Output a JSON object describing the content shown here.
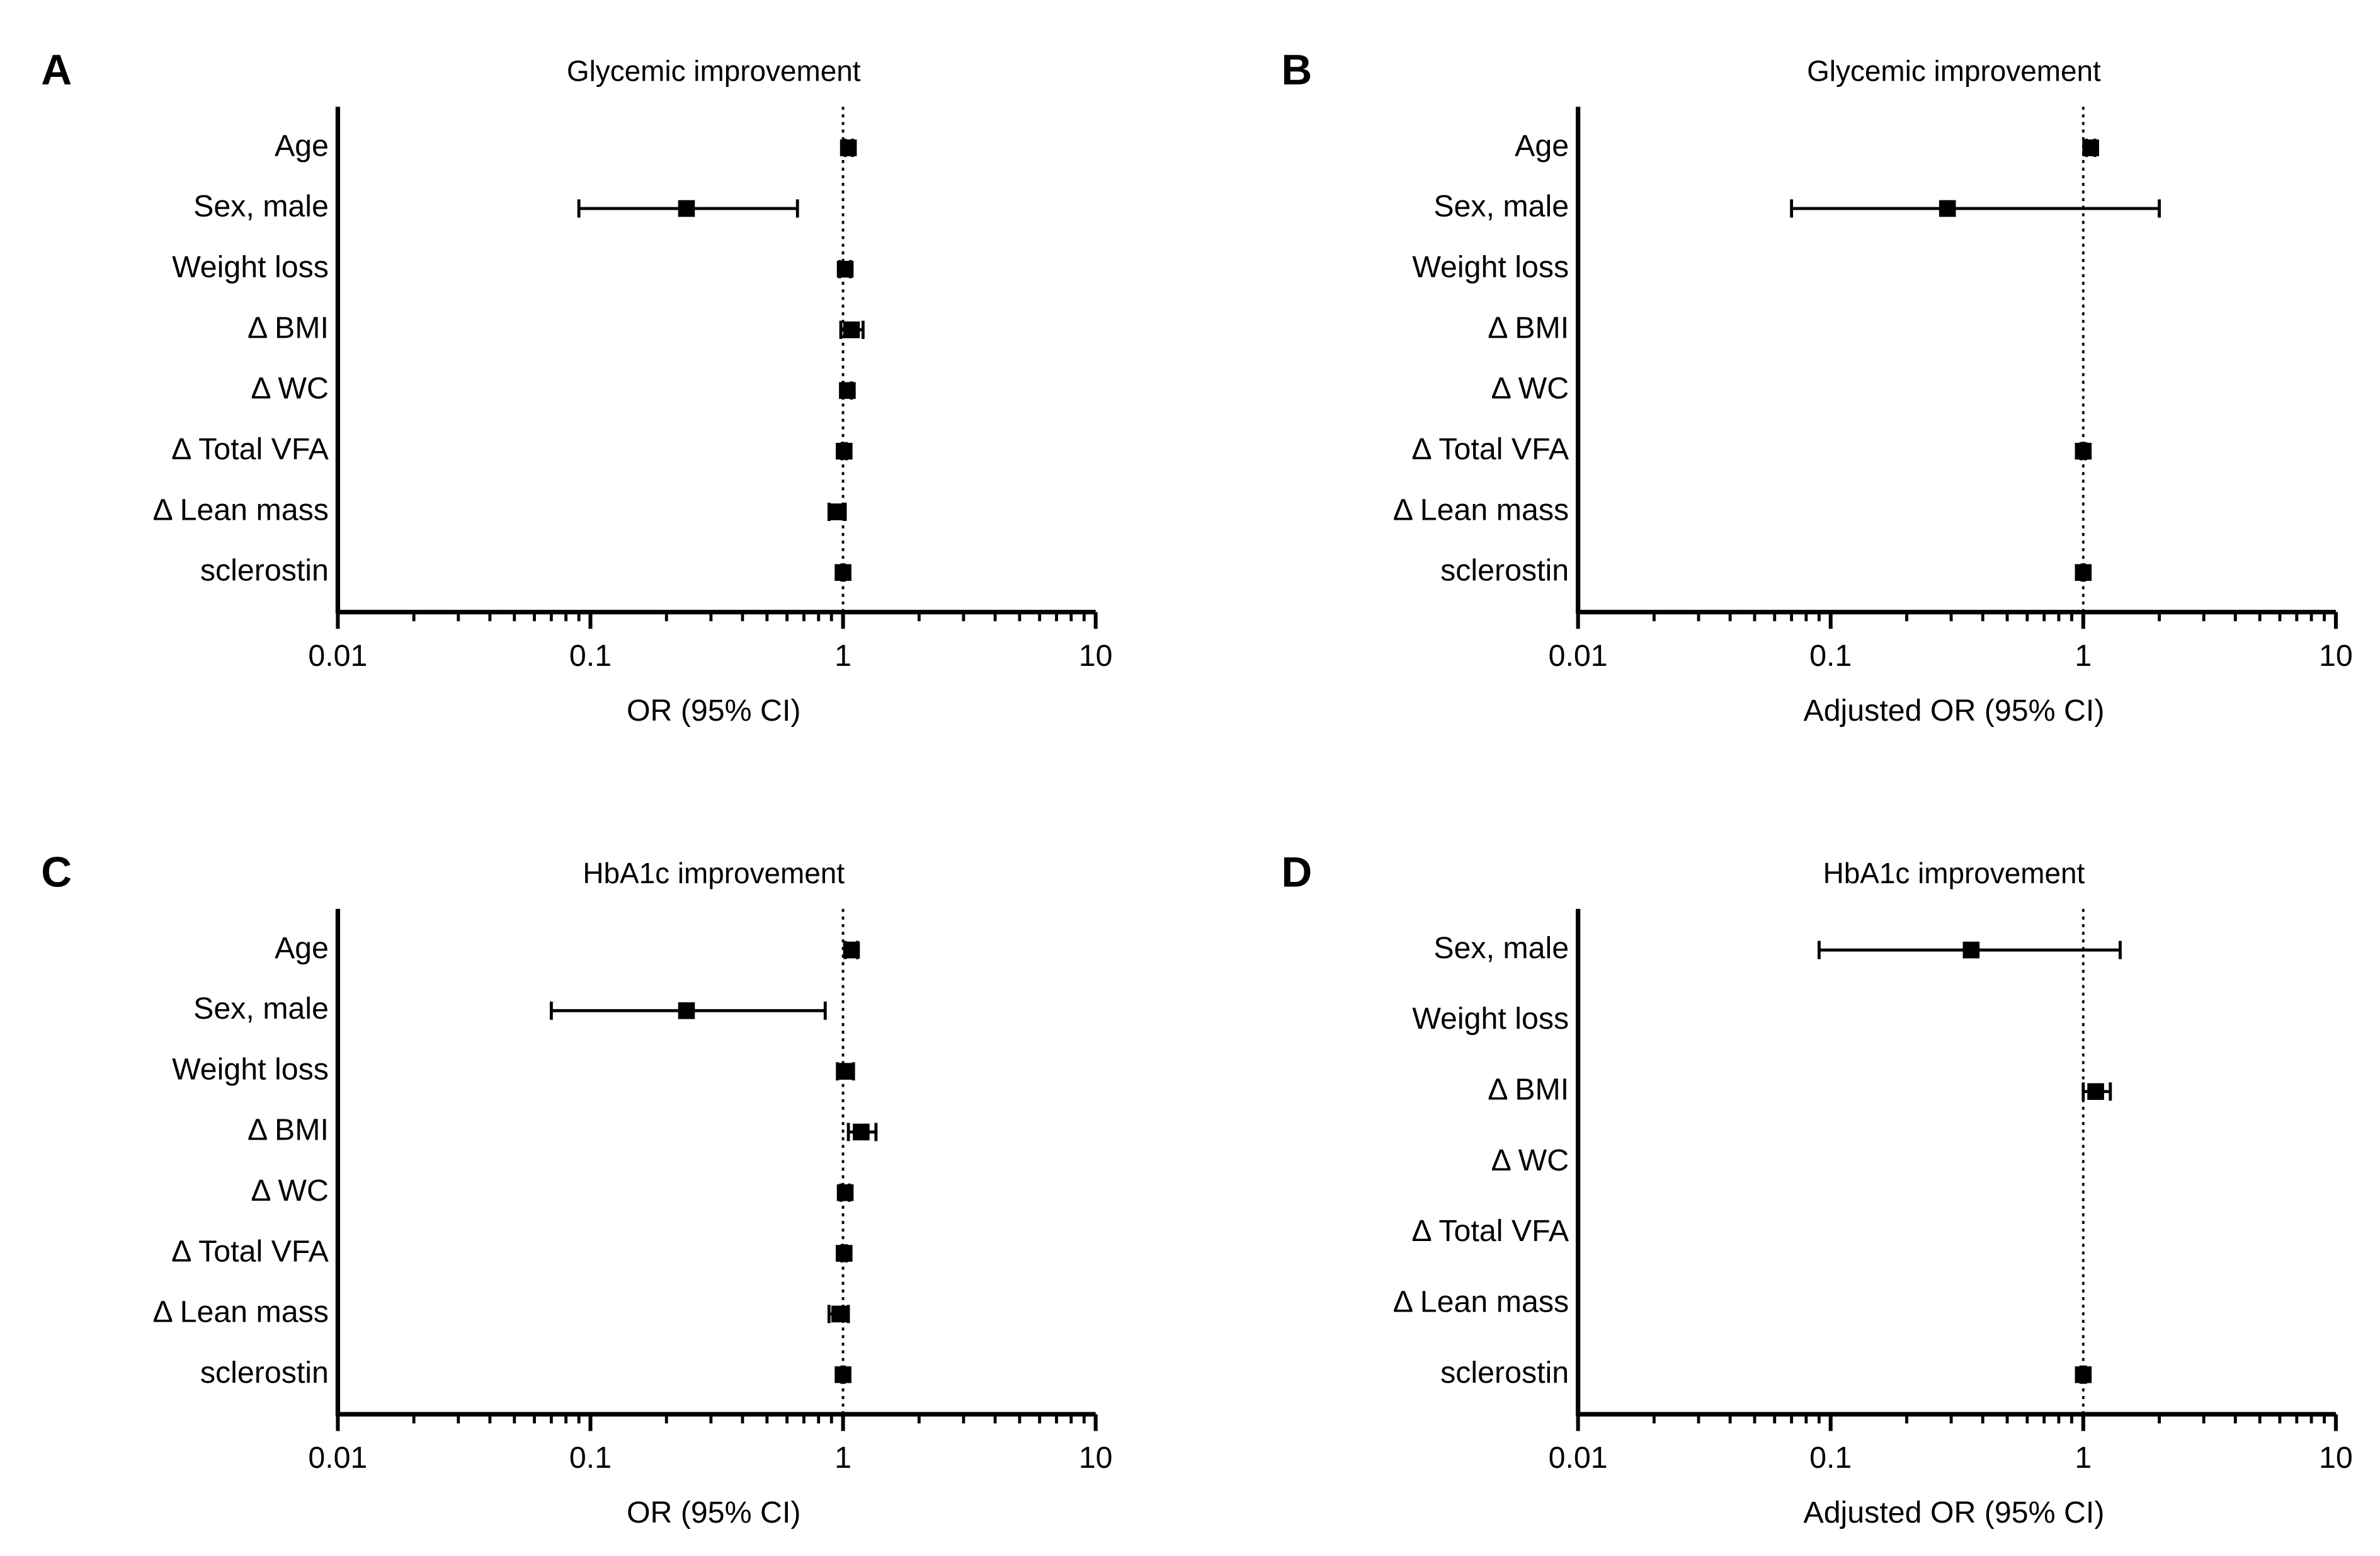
{
  "chart_data": [
    {
      "type": "forest",
      "panel": "A",
      "title": "Glycemic improvement",
      "xlabel": "OR (95% CI)",
      "xscale": "log",
      "xlim": [
        0.01,
        10
      ],
      "xticks": [
        0.01,
        0.1,
        1,
        10
      ],
      "reference_line": 1,
      "color": "#000000",
      "categories": [
        "Age",
        "Sex, male",
        "Weight loss",
        "Δ BMI",
        "Δ WC",
        "Δ Total VFA",
        "Δ Lean mass",
        "sclerostin"
      ],
      "values": [
        1.05,
        0.24,
        1.02,
        1.08,
        1.04,
        1.01,
        0.95,
        1.0
      ],
      "lower": [
        1.02,
        0.09,
        0.97,
        0.98,
        1.0,
        0.99,
        0.88,
        0.99
      ],
      "upper": [
        1.09,
        0.66,
        1.07,
        1.2,
        1.08,
        1.03,
        1.02,
        1.01
      ]
    },
    {
      "type": "forest",
      "panel": "B",
      "title": "Glycemic improvement",
      "xlabel": "Adjusted OR (95% CI)",
      "xscale": "log",
      "xlim": [
        0.01,
        10
      ],
      "xticks": [
        0.01,
        0.1,
        1,
        10
      ],
      "reference_line": 1,
      "color": "#000000",
      "categories": [
        "Age",
        "Sex, male",
        "Weight loss",
        "Δ BMI",
        "Δ WC",
        "Δ Total VFA",
        "Δ Lean mass",
        "sclerostin"
      ],
      "values": [
        1.07,
        0.29,
        null,
        null,
        null,
        1.0,
        null,
        1.0
      ],
      "lower": [
        1.03,
        0.07,
        null,
        null,
        null,
        0.98,
        null,
        0.99
      ],
      "upper": [
        1.11,
        2.0,
        null,
        null,
        null,
        1.02,
        null,
        1.01
      ]
    },
    {
      "type": "forest",
      "panel": "C",
      "title": "HbA1c improvement",
      "xlabel": "OR (95% CI)",
      "xscale": "log",
      "xlim": [
        0.01,
        10
      ],
      "xticks": [
        0.01,
        0.1,
        1,
        10
      ],
      "reference_line": 1,
      "color": "#000000",
      "categories": [
        "Age",
        "Sex, male",
        "Weight loss",
        "Δ BMI",
        "Δ WC",
        "Δ Total VFA",
        "Δ Lean mass",
        "sclerostin"
      ],
      "values": [
        1.08,
        0.24,
        1.03,
        1.18,
        1.02,
        1.01,
        0.97,
        1.0
      ],
      "lower": [
        1.02,
        0.07,
        0.95,
        1.05,
        0.98,
        0.99,
        0.88,
        0.99
      ],
      "upper": [
        1.14,
        0.85,
        1.1,
        1.35,
        1.06,
        1.03,
        1.05,
        1.01
      ]
    },
    {
      "type": "forest",
      "panel": "D",
      "title": "HbA1c improvement",
      "xlabel": "Adjusted OR (95% CI)",
      "xscale": "log",
      "xlim": [
        0.01,
        10
      ],
      "xticks": [
        0.01,
        0.1,
        1,
        10
      ],
      "reference_line": 1,
      "color": "#000000",
      "categories": [
        "Sex, male",
        "Weight loss",
        "Δ BMI",
        "Δ WC",
        "Δ Total VFA",
        "Δ Lean mass",
        "sclerostin"
      ],
      "values": [
        0.36,
        null,
        1.12,
        null,
        null,
        null,
        1.0
      ],
      "lower": [
        0.09,
        null,
        1.0,
        null,
        null,
        null,
        0.98
      ],
      "upper": [
        1.4,
        null,
        1.28,
        null,
        null,
        null,
        1.02
      ]
    }
  ]
}
